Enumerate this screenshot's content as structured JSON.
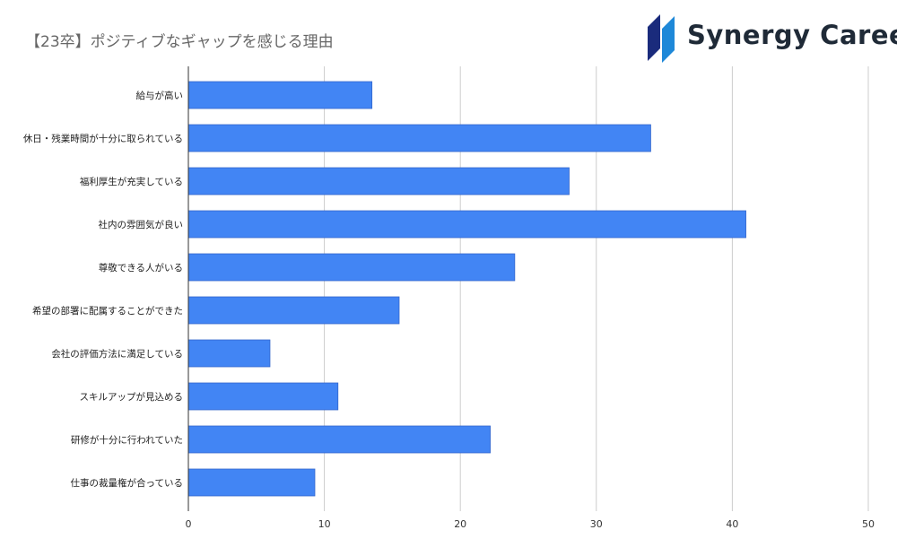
{
  "title": "【23卒】ポジティブなギャップを感じる理由",
  "brand": {
    "name": "Synergy Career",
    "colors": {
      "dark": "#1a2b7c",
      "light": "#1e88d8",
      "text": "#1f2a37"
    }
  },
  "chart_data": {
    "type": "bar",
    "orientation": "horizontal",
    "title": "【23卒】ポジティブなギャップを感じる理由",
    "categories": [
      "給与が高い",
      "休日・残業時間が十分に取られている",
      "福利厚生が充実している",
      "社内の雰囲気が良い",
      "尊敬できる人がいる",
      "希望の部署に配属することができた",
      "会社の評価方法に満足している",
      "スキルアップが見込める",
      "研修が十分に行われていた",
      "仕事の裁量権が合っている"
    ],
    "values": [
      13.5,
      34,
      28,
      41,
      24,
      15.5,
      6,
      11,
      22.2,
      9.3
    ],
    "xlim": [
      0,
      50
    ],
    "xticks": [
      0,
      10,
      20,
      30,
      40,
      50
    ],
    "grid": true,
    "bar_color": "#4285f4",
    "legend": "none"
  }
}
